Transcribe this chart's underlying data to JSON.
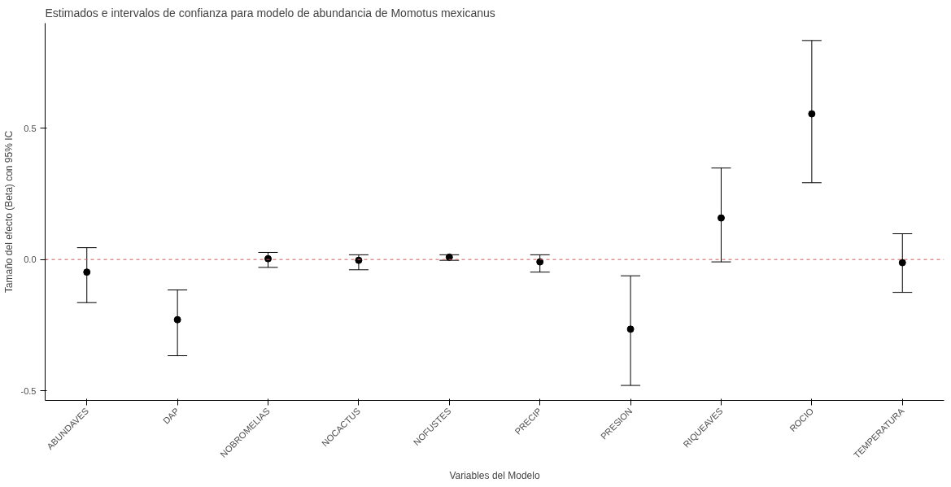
{
  "chart_data": {
    "type": "scatter",
    "title": "Estimados e intervalos de confianza para modelo de abundancia de Momotus mexicanus",
    "xlabel": "Variables del Modelo",
    "ylabel": "Tamaño del efecto (Beta) con 95% IC",
    "categories": [
      "ABUNDAVES",
      "DAP",
      "NOBROMELIAS",
      "NOCACTUS",
      "NOFUSTES",
      "PRECIP",
      "PRESION",
      "RIQUEAVES",
      "ROCIO",
      "TEMPERATURA"
    ],
    "values": [
      -0.048,
      -0.229,
      0.003,
      -0.003,
      0.009,
      -0.009,
      -0.265,
      0.158,
      0.554,
      -0.012
    ],
    "errors": [
      [
        -0.164,
        0.045
      ],
      [
        -0.366,
        -0.116
      ],
      [
        -0.03,
        0.027
      ],
      [
        -0.039,
        0.018
      ],
      [
        -0.003,
        0.018
      ],
      [
        -0.048,
        0.018
      ],
      [
        -0.479,
        -0.062
      ],
      [
        -0.009,
        0.348
      ],
      [
        0.292,
        0.833
      ],
      [
        -0.125,
        0.098
      ]
    ],
    "color": "#000000",
    "marker": "circle",
    "ylim": [
      -0.536,
      0.899
    ],
    "yticks": [
      -0.5,
      {
        "value": 0,
        "label": "0.0"
      },
      0.5
    ],
    "ref_lines": [
      {
        "axis": "y",
        "value": 0,
        "color": "#cd5c5c",
        "line_style": "dashed"
      }
    ],
    "grid": false
  }
}
